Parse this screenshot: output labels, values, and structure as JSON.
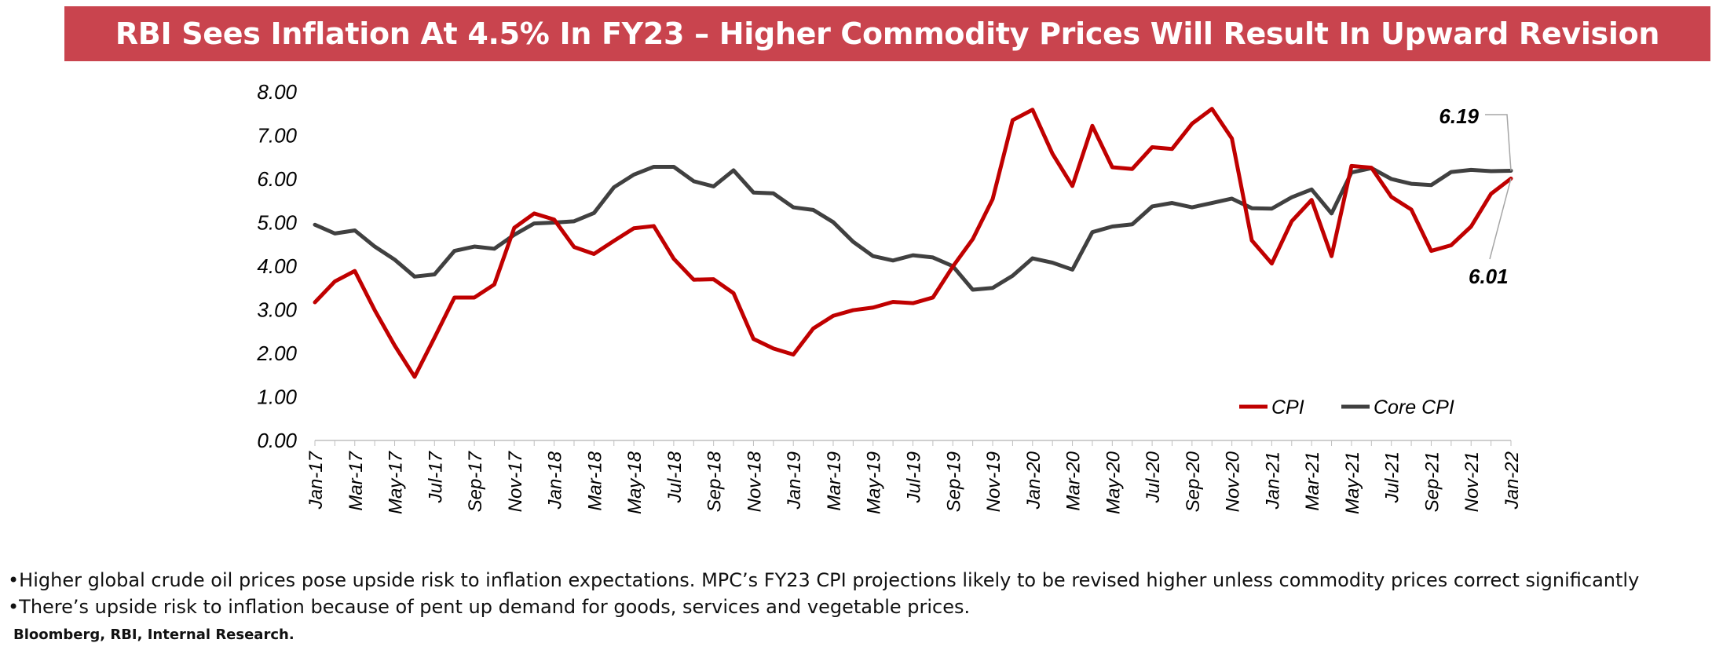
{
  "title": "RBI Sees Inflation At 4.5% In FY23 – Higher Commodity Prices Will Result In Upward Revision",
  "notes": [
    "•Higher global crude oil prices pose upside risk to inflation expectations. MPC’s FY23 CPI projections likely to be revised higher unless commodity prices correct significantly",
    "•There’s upside risk to inflation because of pent up demand for goods, services and vegetable prices."
  ],
  "source": "Bloomberg, RBI, Internal Research.",
  "colors": {
    "cpi": "#c00000",
    "core": "#404040",
    "title_bg": "#c9444e"
  },
  "chart_data": {
    "type": "line",
    "title": "",
    "xlabel": "",
    "ylabel": "",
    "ylim": [
      0,
      8
    ],
    "yticks": [
      "0.00",
      "1.00",
      "2.00",
      "3.00",
      "4.00",
      "5.00",
      "6.00",
      "7.00",
      "8.00"
    ],
    "xtick_labels": [
      "Jan-17",
      "Mar-17",
      "May-17",
      "Jul-17",
      "Sep-17",
      "Nov-17",
      "Jan-18",
      "Mar-18",
      "May-18",
      "Jul-18",
      "Sep-18",
      "Nov-18",
      "Jan-19",
      "Mar-19",
      "May-19",
      "Jul-19",
      "Sep-19",
      "Nov-19",
      "Jan-20",
      "Mar-20",
      "May-20",
      "Jul-20",
      "Sep-20",
      "Nov-20",
      "Jan-21",
      "Mar-21",
      "May-21",
      "Jul-21",
      "Sep-21",
      "Nov-21",
      "Jan-22"
    ],
    "x": [
      "Jan-17",
      "Feb-17",
      "Mar-17",
      "Apr-17",
      "May-17",
      "Jun-17",
      "Jul-17",
      "Aug-17",
      "Sep-17",
      "Oct-17",
      "Nov-17",
      "Dec-17",
      "Jan-18",
      "Feb-18",
      "Mar-18",
      "Apr-18",
      "May-18",
      "Jun-18",
      "Jul-18",
      "Aug-18",
      "Sep-18",
      "Oct-18",
      "Nov-18",
      "Dec-18",
      "Jan-19",
      "Feb-19",
      "Mar-19",
      "Apr-19",
      "May-19",
      "Jun-19",
      "Jul-19",
      "Aug-19",
      "Sep-19",
      "Oct-19",
      "Nov-19",
      "Dec-19",
      "Jan-20",
      "Feb-20",
      "Mar-20",
      "Apr-20",
      "May-20",
      "Jun-20",
      "Jul-20",
      "Aug-20",
      "Sep-20",
      "Oct-20",
      "Nov-20",
      "Dec-20",
      "Jan-21",
      "Feb-21",
      "Mar-21",
      "Apr-21",
      "May-21",
      "Jun-21",
      "Jul-21",
      "Aug-21",
      "Sep-21",
      "Oct-21",
      "Nov-21",
      "Dec-21",
      "Jan-22"
    ],
    "series": [
      {
        "name": "CPI",
        "color": "#c00000",
        "values": [
          3.17,
          3.65,
          3.89,
          2.99,
          2.18,
          1.46,
          2.36,
          3.28,
          3.28,
          3.58,
          4.88,
          5.21,
          5.07,
          4.44,
          4.28,
          4.58,
          4.87,
          4.92,
          4.17,
          3.69,
          3.7,
          3.38,
          2.33,
          2.11,
          1.97,
          2.57,
          2.86,
          2.99,
          3.05,
          3.18,
          3.15,
          3.28,
          3.99,
          4.62,
          5.54,
          7.35,
          7.59,
          6.58,
          5.84,
          7.22,
          6.27,
          6.23,
          6.73,
          6.69,
          7.27,
          7.61,
          6.93,
          4.59,
          4.06,
          5.03,
          5.52,
          4.23,
          6.3,
          6.26,
          5.59,
          5.3,
          4.35,
          4.48,
          4.91,
          5.66,
          6.01
        ]
      },
      {
        "name": "Core CPI",
        "color": "#404040",
        "values": [
          4.95,
          4.75,
          4.82,
          4.45,
          4.15,
          3.76,
          3.81,
          4.35,
          4.45,
          4.4,
          4.72,
          4.98,
          5.0,
          5.03,
          5.22,
          5.81,
          6.1,
          6.28,
          6.28,
          5.95,
          5.83,
          6.2,
          5.69,
          5.67,
          5.35,
          5.29,
          5.01,
          4.56,
          4.23,
          4.13,
          4.25,
          4.2,
          4.0,
          3.46,
          3.5,
          3.78,
          4.18,
          4.08,
          3.92,
          4.78,
          4.91,
          4.96,
          5.37,
          5.45,
          5.35,
          5.45,
          5.55,
          5.33,
          5.32,
          5.58,
          5.76,
          5.21,
          6.15,
          6.25,
          6.0,
          5.89,
          5.86,
          6.16,
          6.21,
          6.18,
          6.19
        ]
      }
    ],
    "annotations": [
      {
        "text": "6.19",
        "series": "Core CPI",
        "x": "Jan-22"
      },
      {
        "text": "6.01",
        "series": "CPI",
        "x": "Jan-22"
      }
    ],
    "legend": {
      "position": "bottom-right",
      "entries": [
        "CPI",
        "Core CPI"
      ]
    },
    "grid": false
  }
}
